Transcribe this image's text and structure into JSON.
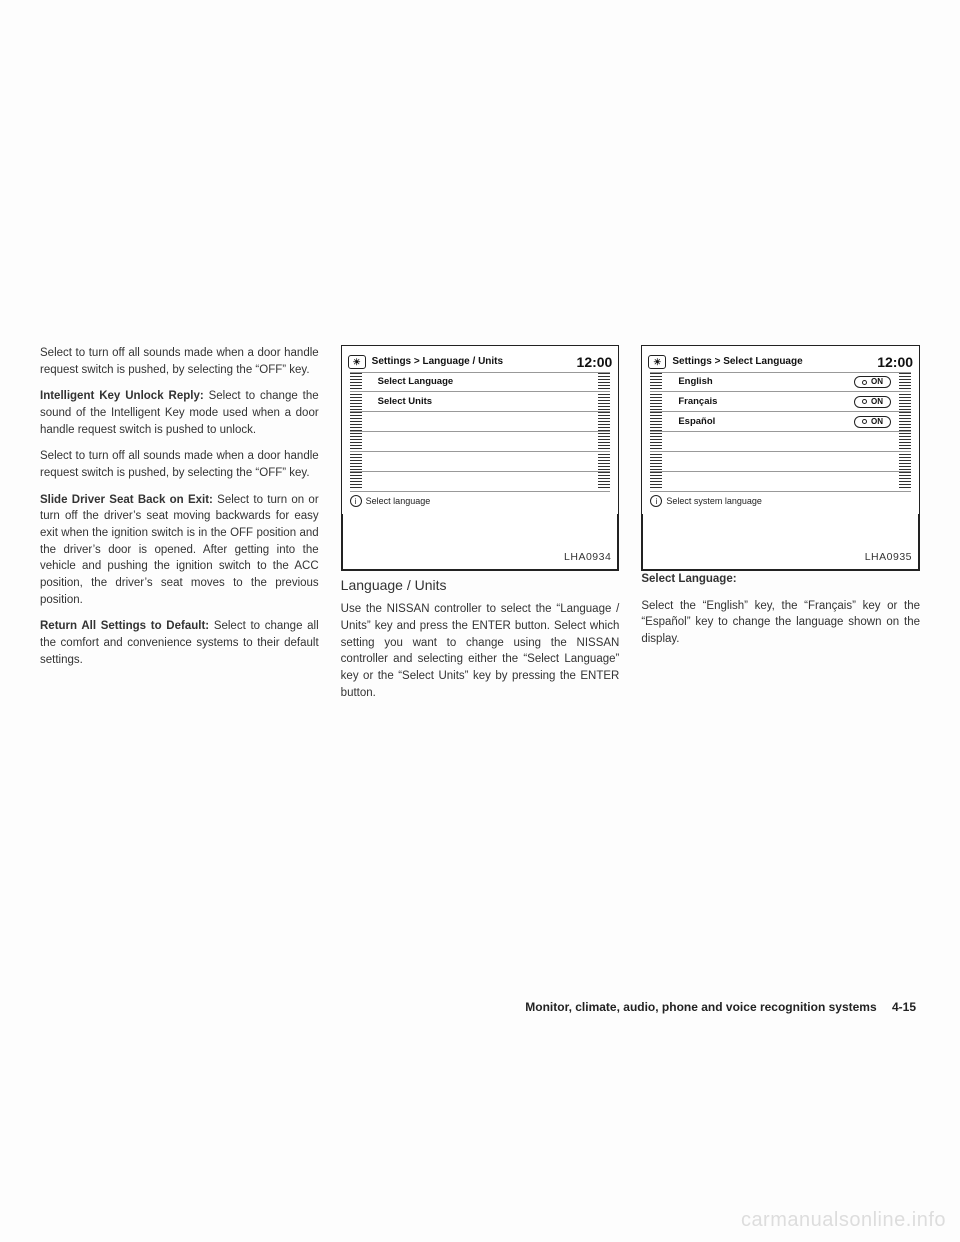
{
  "col1": {
    "p1": "Select to turn off all sounds made when a door handle request switch is pushed, by selecting the “OFF” key.",
    "h2": "Intelligent Key Unlock Reply:",
    "p2": "Select to change the sound of the Intelligent Key mode used when a door handle request switch is pushed to unlock.",
    "p3": "Select to turn off all sounds made when a door handle request switch is pushed, by selecting the “OFF” key.",
    "h3": "Slide Driver Seat Back on Exit:",
    "p4": "Select to turn on or turn off the driver’s seat moving backwards for easy exit when the ignition switch is in the OFF position and the driver’s door is opened. After getting into the vehicle and pushing the ignition switch to the ACC position, the driver’s seat moves to the previous position.",
    "h4": "Return All Settings to Default:",
    "p5": "Select to change all the comfort and convenience systems to their default settings."
  },
  "col2": {
    "screen_title": "Settings > Language / Units",
    "clock": "12:00",
    "rows": [
      "Select Language",
      "Select Units",
      "",
      "",
      "",
      ""
    ],
    "hint": "Select language",
    "figcode": "LHA0934",
    "heading": "Language / Units",
    "body": "Use the NISSAN controller to select the “Language / Units” key and press the ENTER button. Select which setting you want to change using the NISSAN controller and selecting either the “Select Language” key or the “Select Units” key by pressing the ENTER button."
  },
  "col3": {
    "screen_title": "Settings > Select Language",
    "clock": "12:00",
    "rows": [
      {
        "label": "English",
        "on": true
      },
      {
        "label": "Français",
        "on": true
      },
      {
        "label": "Español",
        "on": true
      },
      {
        "label": "",
        "on": false
      },
      {
        "label": "",
        "on": false
      },
      {
        "label": "",
        "on": false
      }
    ],
    "hint": "Select system language",
    "figcode": "LHA0935",
    "subhead": "Select Language:",
    "body": "Select the “English” key, the “Français” key or the “Español” key to change the language shown on the display."
  },
  "footer": "Monitor, climate, audio, phone and voice recognition systems  4-15",
  "watermark": "carmanualsonline.info"
}
